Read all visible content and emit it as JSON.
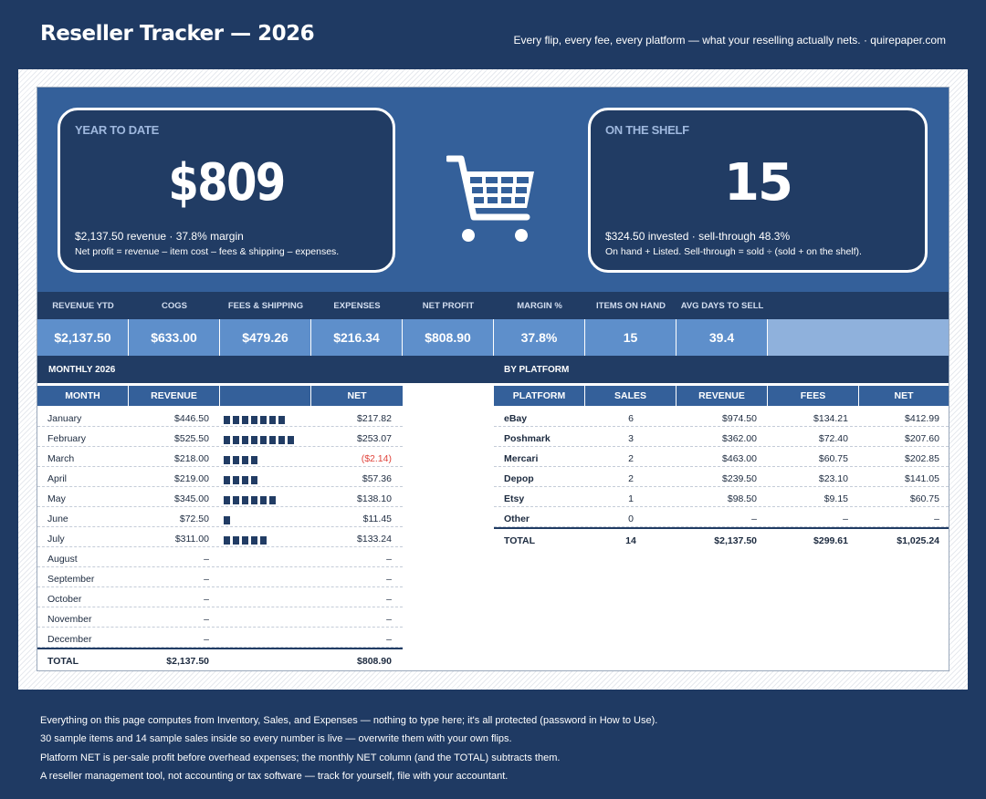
{
  "header": {
    "title": "Reseller Tracker — 2026",
    "tagline": "Every flip, every fee, every platform — what your reselling actually nets.  ·  quirepaper.com"
  },
  "ytd_card": {
    "label": "YEAR TO DATE",
    "value": "$809",
    "sub1": "$2,137.50 revenue  ·  37.8% margin",
    "sub2": "Net profit = revenue – item cost – fees & shipping – expenses."
  },
  "shelf_card": {
    "label": "ON THE SHELF",
    "value": "15",
    "sub1": "$324.50 invested  ·  sell-through 48.3%",
    "sub2": "On hand + Listed. Sell-through = sold ÷ (sold + on the shelf)."
  },
  "cart_icon": "shopping-cart-icon",
  "kpis": [
    {
      "label": "REVENUE YTD",
      "value": "$2,137.50"
    },
    {
      "label": "COGS",
      "value": "$633.00"
    },
    {
      "label": "FEES & SHIPPING",
      "value": "$479.26"
    },
    {
      "label": "EXPENSES",
      "value": "$216.34"
    },
    {
      "label": "NET PROFIT",
      "value": "$808.90"
    },
    {
      "label": "MARGIN %",
      "value": "37.8%"
    },
    {
      "label": "ITEMS ON HAND",
      "value": "15"
    },
    {
      "label": "AVG DAYS TO SELL",
      "value": "39.4"
    }
  ],
  "monthly": {
    "title": "MONTHLY 2026",
    "headers": {
      "month": "MONTH",
      "revenue": "REVENUE",
      "net": "NET"
    },
    "rows": [
      {
        "month": "January",
        "revenue": "$446.50",
        "bars": 7,
        "net": "$217.82"
      },
      {
        "month": "February",
        "revenue": "$525.50",
        "bars": 8,
        "net": "$253.07"
      },
      {
        "month": "March",
        "revenue": "$218.00",
        "bars": 4,
        "net": "($2.14)"
      },
      {
        "month": "April",
        "revenue": "$219.00",
        "bars": 4,
        "net": "$57.36"
      },
      {
        "month": "May",
        "revenue": "$345.00",
        "bars": 6,
        "net": "$138.10"
      },
      {
        "month": "June",
        "revenue": "$72.50",
        "bars": 1,
        "net": "$11.45"
      },
      {
        "month": "July",
        "revenue": "$311.00",
        "bars": 5,
        "net": "$133.24"
      },
      {
        "month": "August",
        "revenue": "–",
        "bars": 0,
        "net": "–"
      },
      {
        "month": "September",
        "revenue": "–",
        "bars": 0,
        "net": "–"
      },
      {
        "month": "October",
        "revenue": "–",
        "bars": 0,
        "net": "–"
      },
      {
        "month": "November",
        "revenue": "–",
        "bars": 0,
        "net": "–"
      },
      {
        "month": "December",
        "revenue": "–",
        "bars": 0,
        "net": "–"
      }
    ],
    "total": {
      "label": "TOTAL",
      "revenue": "$2,137.50",
      "net": "$808.90"
    }
  },
  "platform": {
    "title": "BY PLATFORM",
    "headers": {
      "platform": "PLATFORM",
      "sales": "SALES",
      "revenue": "REVENUE",
      "fees": "FEES",
      "net": "NET"
    },
    "rows": [
      {
        "platform": "eBay",
        "sales": "6",
        "revenue": "$974.50",
        "fees": "$134.21",
        "net": "$412.99"
      },
      {
        "platform": "Poshmark",
        "sales": "3",
        "revenue": "$362.00",
        "fees": "$72.40",
        "net": "$207.60"
      },
      {
        "platform": "Mercari",
        "sales": "2",
        "revenue": "$463.00",
        "fees": "$60.75",
        "net": "$202.85"
      },
      {
        "platform": "Depop",
        "sales": "2",
        "revenue": "$239.50",
        "fees": "$23.10",
        "net": "$141.05"
      },
      {
        "platform": "Etsy",
        "sales": "1",
        "revenue": "$98.50",
        "fees": "$9.15",
        "net": "$60.75"
      },
      {
        "platform": "Other",
        "sales": "0",
        "revenue": "–",
        "fees": "–",
        "net": "–"
      }
    ],
    "total": {
      "label": "TOTAL",
      "sales": "14",
      "revenue": "$2,137.50",
      "fees": "$299.61",
      "net": "$1,025.24"
    }
  },
  "notes": [
    "Everything on this page computes from Inventory, Sales, and Expenses — nothing to type here; it's all protected (password in How to Use).",
    "30 sample items and 14 sample sales inside so every number is live — overwrite them with your own flips.",
    "Platform NET is per-sale profit before overhead expenses; the monthly NET column (and the TOTAL) subtracts them.",
    "A reseller management tool, not accounting or tax software — track for yourself, file with your accountant."
  ],
  "colors": {
    "navy": "#213c64",
    "blue": "#34609a",
    "light_blue": "#8fb1dc",
    "negative": "#e0443c"
  }
}
